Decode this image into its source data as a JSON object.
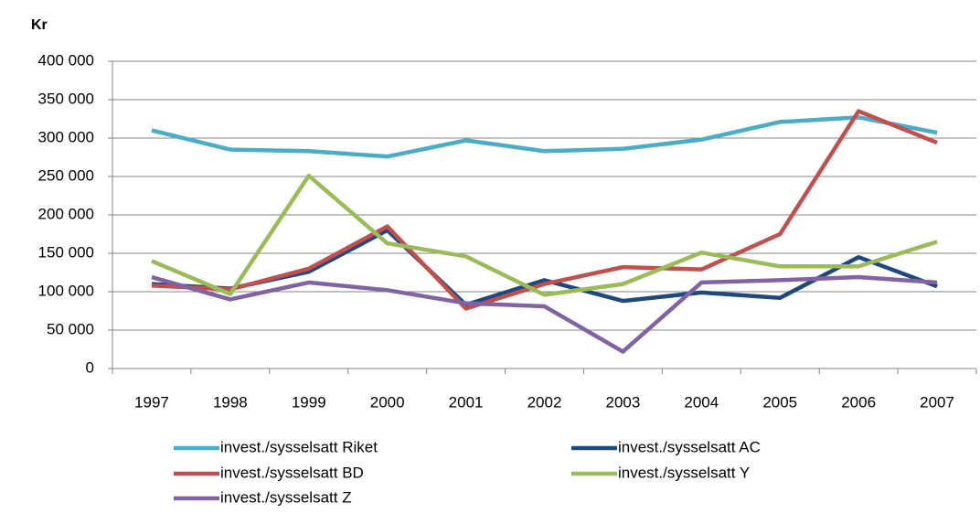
{
  "chart_data": {
    "type": "line",
    "y_label": "Kr",
    "categories": [
      "1997",
      "1998",
      "1999",
      "2000",
      "2001",
      "2002",
      "2003",
      "2004",
      "2005",
      "2006",
      "2007"
    ],
    "series": [
      {
        "name": "invest./sysselsatt Riket",
        "color": "#4bacc6",
        "values": [
          310000,
          285000,
          283000,
          276000,
          297000,
          283000,
          286000,
          298000,
          321000,
          327000,
          307000
        ]
      },
      {
        "name": "invest./sysselsatt AC",
        "color": "#1f497d",
        "values": [
          110000,
          104000,
          126000,
          180000,
          83000,
          115000,
          88000,
          99000,
          92000,
          145000,
          107000
        ]
      },
      {
        "name": "invest./sysselsatt BD",
        "color": "#c0504d",
        "values": [
          108000,
          103000,
          130000,
          185000,
          78000,
          110000,
          132000,
          129000,
          175000,
          335000,
          294000
        ]
      },
      {
        "name": "invest./sysselsatt Y",
        "color": "#9bbb59",
        "values": [
          140000,
          97000,
          251000,
          163000,
          146000,
          96000,
          110000,
          151000,
          133000,
          133000,
          165000
        ]
      },
      {
        "name": "invest./sysselsatt Z",
        "color": "#8064a2",
        "values": [
          119000,
          90000,
          112000,
          102000,
          85000,
          81000,
          22000,
          112000,
          115000,
          119000,
          112000
        ]
      }
    ],
    "ylim": [
      0,
      400000
    ],
    "yticks": [
      0,
      {
        "value": 50000,
        "label": "50 000"
      },
      {
        "value": 100000,
        "label": "100 000"
      },
      {
        "value": 150000,
        "label": "150 000"
      },
      {
        "value": 200000,
        "label": "200 000"
      },
      {
        "value": 250000,
        "label": "250 000"
      },
      {
        "value": 300000,
        "label": "300 000"
      },
      {
        "value": 350000,
        "label": "350 000"
      },
      {
        "value": 400000,
        "label": "400 000"
      }
    ],
    "grid": true
  }
}
